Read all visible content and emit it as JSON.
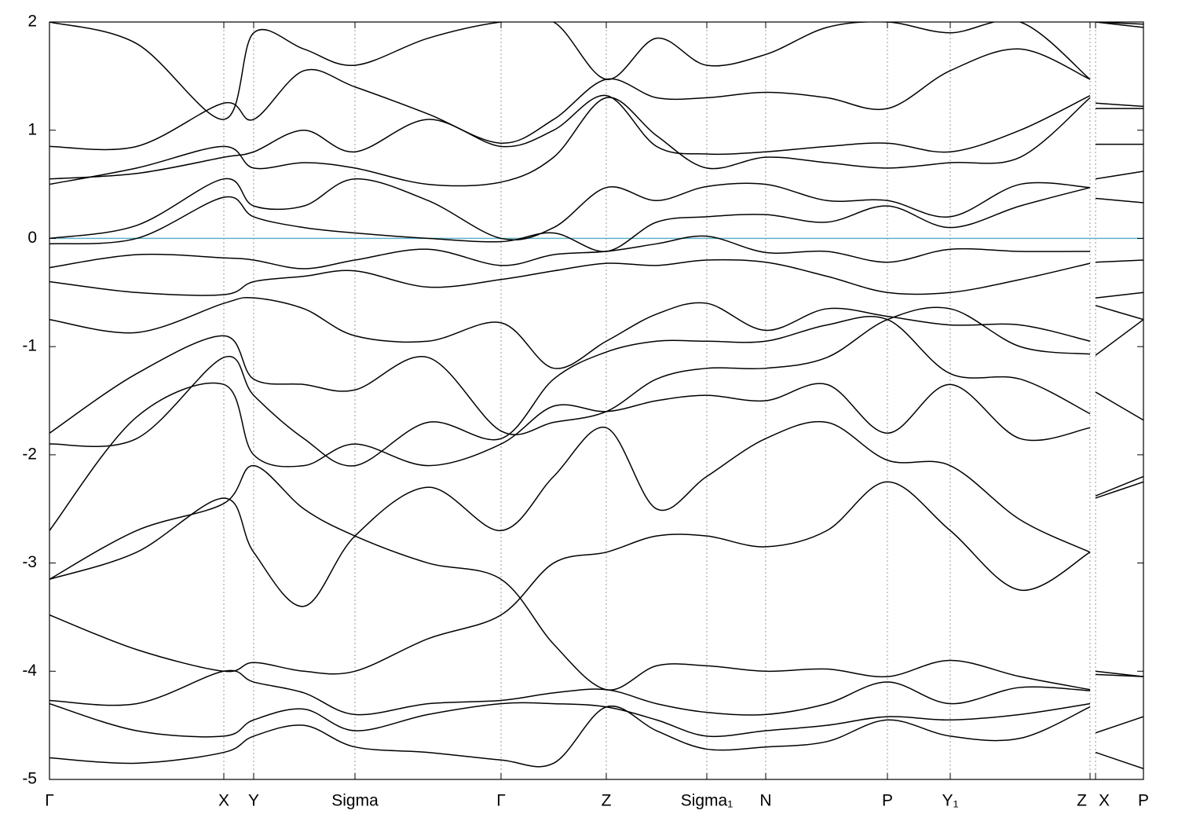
{
  "chart_data": {
    "type": "line",
    "x": [
      0,
      0.111,
      0.222,
      0.26,
      0.324,
      0.389,
      0.482,
      0.575,
      0.642,
      0.709,
      0.773,
      0.837,
      0.912,
      0.99,
      1.067,
      1.147,
      1.236,
      1.325,
      1.328,
      1.332,
      1.393
    ],
    "xlim": [
      0,
      1.393
    ],
    "xticks": [
      {
        "value": 0,
        "label": "Γ"
      },
      {
        "value": 0.222,
        "label": "X"
      },
      {
        "value": 0.26,
        "label": "Y"
      },
      {
        "value": 0.389,
        "label": "Sigma"
      },
      {
        "value": 0.575,
        "label": "Γ"
      },
      {
        "value": 0.709,
        "label": "Z"
      },
      {
        "value": 0.837,
        "label": "Sigma₁"
      },
      {
        "value": 0.912,
        "label": "N"
      },
      {
        "value": 1.067,
        "label": "P"
      },
      {
        "value": 1.147,
        "label": "Y₁"
      },
      {
        "value": 1.325,
        "label": "Z"
      },
      {
        "value": 1.332,
        "label": "X"
      },
      {
        "value": 1.393,
        "label": "P"
      }
    ],
    "ylim": [
      -5,
      2
    ],
    "yticks": [
      -5,
      -4,
      -3,
      -2,
      -1,
      0,
      1,
      2
    ],
    "grid": "x",
    "hline": 0,
    "hline_color": "#5fb0c8",
    "series": [
      {
        "color": "#000000",
        "values": [
          -4.8,
          -4.85,
          -4.75,
          -4.6,
          -4.5,
          -4.7,
          -4.75,
          -4.82,
          -4.85,
          -4.33,
          -4.55,
          -4.72,
          -4.7,
          -4.65,
          -4.45,
          -4.6,
          -4.62,
          -4.33,
          null,
          -4.75,
          -4.9
        ]
      },
      {
        "color": "#000000",
        "values": [
          -4.3,
          -4.55,
          -4.6,
          -4.45,
          -4.35,
          -4.55,
          -4.4,
          -4.3,
          -4.3,
          -4.33,
          -4.45,
          -4.6,
          -4.55,
          -4.5,
          -4.42,
          -4.45,
          -4.4,
          -4.3,
          null,
          -4.57,
          -4.42
        ]
      },
      {
        "color": "#000000",
        "values": [
          -4.27,
          -4.3,
          -4.0,
          -4.1,
          -4.2,
          -4.4,
          -4.3,
          -4.27,
          -4.2,
          -4.17,
          -4.3,
          -4.38,
          -4.4,
          -4.3,
          -4.1,
          -4.3,
          -4.15,
          -4.18,
          null,
          -4.03,
          -4.05
        ]
      },
      {
        "color": "#000000",
        "values": [
          -3.48,
          -3.8,
          -4.0,
          -3.92,
          -4.0,
          -4.0,
          -3.7,
          -3.48,
          -3.0,
          -2.9,
          -2.75,
          -2.75,
          -2.85,
          -2.7,
          -2.25,
          -2.7,
          -3.25,
          -2.9,
          null,
          -2.4,
          -2.25
        ]
      },
      {
        "color": "#000000",
        "values": [
          -3.15,
          -2.7,
          -2.45,
          -2.1,
          -2.5,
          -2.75,
          -3.0,
          -3.15,
          -3.75,
          -4.17,
          -3.95,
          -3.95,
          -4.0,
          -3.98,
          -4.05,
          -3.9,
          -4.05,
          -4.17,
          null,
          -4.0,
          -4.05
        ]
      },
      {
        "color": "#000000",
        "values": [
          -3.15,
          -2.9,
          -2.4,
          -2.9,
          -3.4,
          -2.75,
          -2.3,
          -2.7,
          -2.2,
          -1.75,
          -2.5,
          -2.2,
          -1.85,
          -1.7,
          -2.05,
          -2.1,
          -2.6,
          -2.9,
          null,
          -2.38,
          -2.2
        ]
      },
      {
        "color": "#000000",
        "values": [
          -2.7,
          -1.65,
          -1.35,
          -2.0,
          -2.1,
          -1.9,
          -2.1,
          -1.9,
          -1.55,
          -1.6,
          -1.5,
          -1.45,
          -1.5,
          -1.35,
          -1.8,
          -1.35,
          -1.85,
          -1.75,
          null,
          -1.42,
          -1.68
        ]
      },
      {
        "color": "#000000",
        "values": [
          -1.9,
          -1.85,
          -1.1,
          -1.45,
          -1.85,
          -2.1,
          -1.7,
          -1.85,
          -1.3,
          -1.05,
          -0.95,
          -0.95,
          -0.95,
          -0.8,
          -0.75,
          -1.25,
          -1.3,
          -1.62,
          null,
          -1.08,
          -0.75
        ]
      },
      {
        "color": "#000000",
        "values": [
          -1.8,
          -1.25,
          -0.9,
          -1.3,
          -1.35,
          -1.4,
          -1.1,
          -1.78,
          -1.7,
          -1.6,
          -1.3,
          -1.2,
          -1.2,
          -1.1,
          -0.75,
          -0.65,
          -1.0,
          -1.07,
          null,
          -0.62,
          -0.75
        ]
      },
      {
        "color": "#000000",
        "values": [
          -0.75,
          -0.87,
          -0.6,
          -0.55,
          -0.65,
          -0.9,
          -0.95,
          -0.78,
          -1.2,
          -0.95,
          -0.7,
          -0.6,
          -0.85,
          -0.65,
          -0.72,
          -0.8,
          -0.8,
          -0.95,
          null,
          -0.55,
          -0.5
        ]
      },
      {
        "color": "#000000",
        "values": [
          -0.4,
          -0.5,
          -0.52,
          -0.4,
          -0.35,
          -0.3,
          -0.45,
          -0.38,
          -0.3,
          -0.23,
          -0.25,
          -0.2,
          -0.22,
          -0.35,
          -0.5,
          -0.5,
          -0.38,
          -0.23,
          null,
          -0.22,
          -0.2
        ]
      },
      {
        "color": "#000000",
        "values": [
          -0.27,
          -0.15,
          -0.18,
          -0.2,
          -0.28,
          -0.2,
          -0.1,
          -0.25,
          -0.15,
          -0.12,
          -0.05,
          0.02,
          -0.13,
          -0.12,
          -0.22,
          -0.1,
          -0.12,
          -0.12,
          null,
          0.37,
          0.33
        ]
      },
      {
        "color": "#000000",
        "values": [
          -0.05,
          0.0,
          0.38,
          0.2,
          0.1,
          0.05,
          0.0,
          -0.03,
          0.05,
          -0.12,
          0.15,
          0.2,
          0.22,
          0.15,
          0.3,
          0.1,
          0.3,
          0.47,
          null,
          0.55,
          0.62
        ]
      },
      {
        "color": "#000000",
        "values": [
          0.0,
          0.12,
          0.55,
          0.3,
          0.3,
          0.55,
          0.35,
          0.0,
          0.1,
          0.47,
          0.35,
          0.48,
          0.5,
          0.35,
          0.35,
          0.2,
          0.5,
          0.47,
          null,
          0.87,
          0.87
        ]
      },
      {
        "color": "#000000",
        "values": [
          0.5,
          0.65,
          0.85,
          0.65,
          0.7,
          0.65,
          0.5,
          0.52,
          0.75,
          1.3,
          0.95,
          0.65,
          0.75,
          0.7,
          0.65,
          0.7,
          0.75,
          1.3,
          null,
          1.2,
          1.2
        ]
      },
      {
        "color": "#000000",
        "values": [
          0.55,
          0.6,
          0.75,
          0.8,
          1.0,
          0.8,
          1.1,
          0.85,
          1.0,
          1.32,
          0.85,
          0.78,
          0.8,
          0.85,
          0.88,
          0.8,
          1.0,
          1.32,
          null,
          1.25,
          1.22
        ]
      },
      {
        "color": "#000000",
        "values": [
          0.85,
          0.85,
          1.25,
          1.1,
          1.55,
          1.4,
          1.15,
          0.88,
          1.1,
          1.47,
          1.3,
          1.3,
          1.35,
          1.3,
          1.2,
          1.55,
          1.75,
          1.47,
          null,
          2.0,
          1.95
        ]
      },
      {
        "color": "#000000",
        "values": [
          2.0,
          1.8,
          1.1,
          1.9,
          1.75,
          1.6,
          1.85,
          2.0,
          2.0,
          1.47,
          1.85,
          1.6,
          1.7,
          1.95,
          2.0,
          1.9,
          2.0,
          1.47,
          null,
          2.0,
          1.98
        ]
      }
    ]
  }
}
